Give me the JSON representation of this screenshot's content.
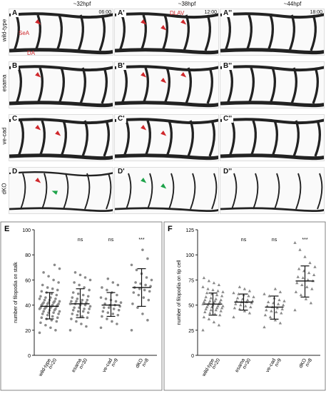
{
  "columns": [
    {
      "title": "~32hpf"
    },
    {
      "title": "~38hpf"
    },
    {
      "title": "~44hpf"
    }
  ],
  "rows": [
    {
      "label": "wild-type",
      "panels": [
        {
          "label": "A",
          "time": "06:00",
          "annotations": [
            "SeA",
            "DA"
          ]
        },
        {
          "label": "A'",
          "time": "12:00",
          "annotations": [
            "DLAV"
          ]
        },
        {
          "label": "A''",
          "time": "18:00",
          "annotations": []
        }
      ]
    },
    {
      "label": "esama",
      "panels": [
        {
          "label": "B"
        },
        {
          "label": "B'"
        },
        {
          "label": "B''"
        }
      ]
    },
    {
      "label": "ve-cad",
      "panels": [
        {
          "label": "C"
        },
        {
          "label": "C'"
        },
        {
          "label": "C''"
        }
      ]
    },
    {
      "label": "dKO",
      "panels": [
        {
          "label": "D"
        },
        {
          "label": "D'"
        },
        {
          "label": "D''"
        }
      ]
    }
  ],
  "arrow_color": "#d0282c",
  "arrow_color_alt": "#1ea34a",
  "chart_data": [
    {
      "panel": "E",
      "type": "scatter",
      "ylabel": "number of filopodia on stalk",
      "ylim": [
        0,
        100
      ],
      "yticks": [
        "0",
        "20",
        "40",
        "60",
        "80",
        "100"
      ],
      "categories": [
        {
          "name": "wild-type",
          "n": "n=20"
        },
        {
          "name": "esama",
          "n": "n=30"
        },
        {
          "name": "ve-cad",
          "n": "n=9"
        },
        {
          "name": "dKO",
          "n": "n=8"
        }
      ],
      "significance": [
        "",
        "ns",
        "ns",
        "***"
      ],
      "summary": [
        {
          "mean": 39,
          "sd_low": 29,
          "sd_high": 50
        },
        {
          "mean": 41,
          "sd_low": 30,
          "sd_high": 53
        },
        {
          "mean": 40,
          "sd_low": 31,
          "sd_high": 50
        },
        {
          "mean": 54,
          "sd_low": 39,
          "sd_high": 69
        }
      ],
      "points": [
        [
          18,
          20,
          22,
          24,
          26,
          27,
          28,
          29,
          30,
          30,
          31,
          32,
          33,
          33,
          34,
          34,
          35,
          35,
          36,
          36,
          37,
          37,
          37,
          38,
          38,
          38,
          39,
          39,
          39,
          40,
          40,
          40,
          41,
          41,
          41,
          42,
          42,
          42,
          43,
          43,
          44,
          44,
          45,
          45,
          46,
          46,
          47,
          48,
          49,
          50,
          51,
          52,
          53,
          54,
          56,
          58,
          60,
          63,
          66,
          69,
          72
        ],
        [
          20,
          23,
          25,
          27,
          29,
          30,
          31,
          32,
          33,
          34,
          35,
          35,
          36,
          37,
          37,
          38,
          38,
          39,
          40,
          40,
          41,
          41,
          42,
          42,
          43,
          43,
          44,
          44,
          45,
          46,
          47,
          48,
          49,
          50,
          52,
          54,
          56,
          58,
          60,
          62,
          64,
          66
        ],
        [
          22,
          25,
          27,
          29,
          31,
          32,
          33,
          34,
          35,
          36,
          37,
          38,
          38,
          39,
          40,
          40,
          41,
          42,
          43,
          44,
          45,
          46,
          48,
          50,
          52,
          54,
          56,
          58,
          61
        ],
        [
          20,
          28,
          33,
          38,
          41,
          44,
          46,
          48,
          50,
          51,
          52,
          53,
          54,
          55,
          56,
          57,
          58,
          60,
          62,
          65,
          68,
          72,
          77,
          84
        ]
      ]
    },
    {
      "panel": "F",
      "type": "scatter",
      "ylabel": "number of filopodia on tip cell",
      "ylim": [
        0,
        125
      ],
      "yticks": [
        "0",
        "25",
        "50",
        "75",
        "100",
        "125"
      ],
      "categories": [
        {
          "name": "wild-type",
          "n": "n=20"
        },
        {
          "name": "esama",
          "n": "n=30"
        },
        {
          "name": "ve-cad",
          "n": "n=9"
        },
        {
          "name": "dKO",
          "n": "n=8"
        }
      ],
      "significance": [
        "",
        "ns",
        "ns",
        "***"
      ],
      "summary": [
        {
          "mean": 51,
          "sd_low": 40,
          "sd_high": 62
        },
        {
          "mean": 53,
          "sd_low": 45,
          "sd_high": 61
        },
        {
          "mean": 48,
          "sd_low": 36,
          "sd_high": 59
        },
        {
          "mean": 74,
          "sd_low": 58,
          "sd_high": 89
        }
      ],
      "points": [
        [
          25,
          30,
          33,
          36,
          38,
          40,
          41,
          42,
          43,
          44,
          45,
          45,
          46,
          47,
          47,
          48,
          48,
          49,
          49,
          50,
          50,
          51,
          51,
          52,
          52,
          53,
          53,
          54,
          54,
          55,
          55,
          56,
          57,
          58,
          59,
          60,
          61,
          62,
          63,
          64,
          65,
          66,
          68,
          70,
          72,
          74,
          77
        ],
        [
          38,
          42,
          44,
          46,
          47,
          48,
          49,
          50,
          51,
          52,
          53,
          53,
          54,
          54,
          55,
          56,
          57,
          58,
          59,
          60,
          61,
          62,
          64,
          66,
          68
        ],
        [
          28,
          32,
          35,
          38,
          40,
          42,
          43,
          44,
          45,
          46,
          47,
          48,
          49,
          50,
          51,
          52,
          53,
          54,
          55,
          57,
          59,
          61,
          63,
          66
        ],
        [
          45,
          52,
          56,
          60,
          63,
          66,
          68,
          70,
          72,
          74,
          75,
          77,
          78,
          80,
          82,
          84,
          86,
          88,
          92,
          98,
          105,
          112
        ]
      ]
    }
  ]
}
